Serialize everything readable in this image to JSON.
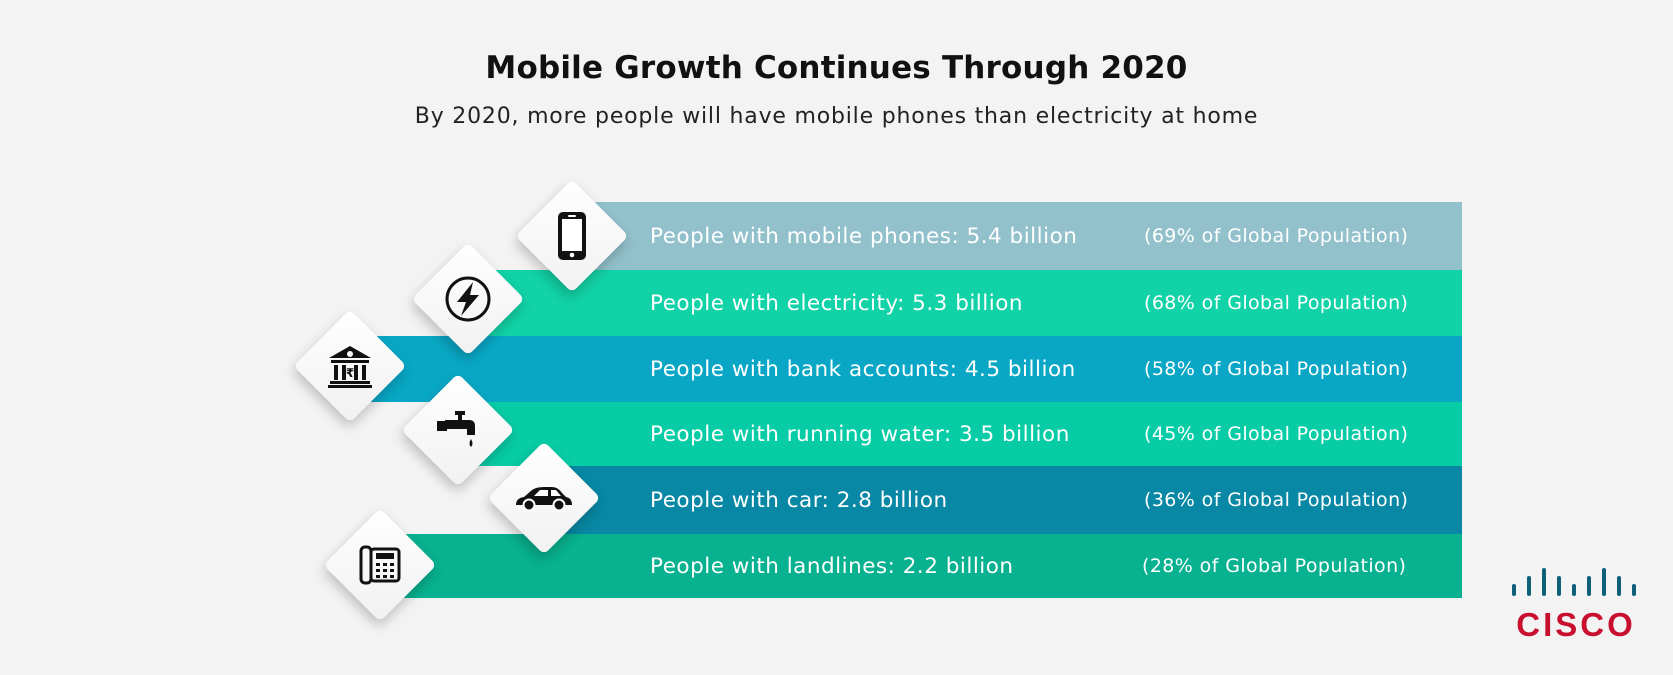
{
  "header": {
    "title": "Mobile Growth Continues Through 2020",
    "subtitle": "By 2020, more people will have mobile phones than electricity at home"
  },
  "rows": [
    {
      "label": "People with mobile phones: 5.4 billion",
      "share": "(69% of Global Population)",
      "color": "#92c1cb",
      "icon": "mobile-phone-icon"
    },
    {
      "label": "People with electricity: 5.3 billion",
      "share": "(68% of Global Population)",
      "color": "#12d2a7",
      "icon": "lightning-bolt-icon"
    },
    {
      "label": "People with bank accounts: 4.5 billion",
      "share": "(58% of Global Population)",
      "color": "#09a7c5",
      "icon": "bank-icon"
    },
    {
      "label": "People with running water: 3.5 billion",
      "share": "(45% of Global Population)",
      "color": "#08cca6",
      "icon": "water-tap-icon"
    },
    {
      "label": "People with car: 2.8 billion",
      "share": "(36% of Global Population)",
      "color": "#0888a4",
      "icon": "car-icon"
    },
    {
      "label": "People with landlines: 2.2 billion",
      "share": "(28% of Global Population)",
      "color": "#08b18f",
      "icon": "landline-phone-icon"
    }
  ],
  "brand": {
    "name": "CISCO",
    "color": "#c8102e",
    "bars_color": "#0e6079"
  }
}
